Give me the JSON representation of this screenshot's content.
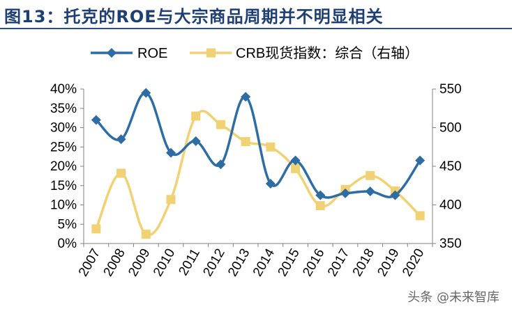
{
  "figure": {
    "title": "图13：托克的ROE与大宗商品周期并不明显相关",
    "watermark": "头条 @未来智库"
  },
  "colors": {
    "roe": "#2e6ca4",
    "crb": "#f0d173"
  },
  "chart_data": {
    "type": "line",
    "categories": [
      "2007",
      "2008",
      "2009",
      "2010",
      "2011",
      "2012",
      "2013",
      "2014",
      "2015",
      "2016",
      "2017",
      "2018",
      "2019",
      "2020"
    ],
    "series": [
      {
        "name": "ROE",
        "axis": "left",
        "marker": "diamond",
        "values": [
          0.32,
          0.27,
          0.39,
          0.235,
          0.265,
          0.205,
          0.38,
          0.155,
          0.215,
          0.125,
          0.13,
          0.135,
          0.125,
          0.215
        ]
      },
      {
        "name": "CRB现货指数：综合（右轴）",
        "axis": "right",
        "marker": "square",
        "values": [
          369,
          441,
          362,
          407,
          515,
          504,
          482,
          475,
          447,
          399,
          420,
          438,
          418,
          386
        ]
      }
    ],
    "y_left": {
      "lim": [
        0,
        0.4
      ],
      "ticks": [
        0,
        0.05,
        0.1,
        0.15,
        0.2,
        0.25,
        0.3,
        0.35,
        0.4
      ],
      "tick_labels": [
        "0%",
        "5%",
        "10%",
        "15%",
        "20%",
        "25%",
        "30%",
        "35%",
        "40%"
      ]
    },
    "y_right": {
      "lim": [
        350,
        550
      ],
      "ticks": [
        350,
        400,
        450,
        500,
        550
      ],
      "tick_labels": [
        "350",
        "400",
        "450",
        "500",
        "550"
      ]
    },
    "grid": false,
    "legend": "top"
  }
}
